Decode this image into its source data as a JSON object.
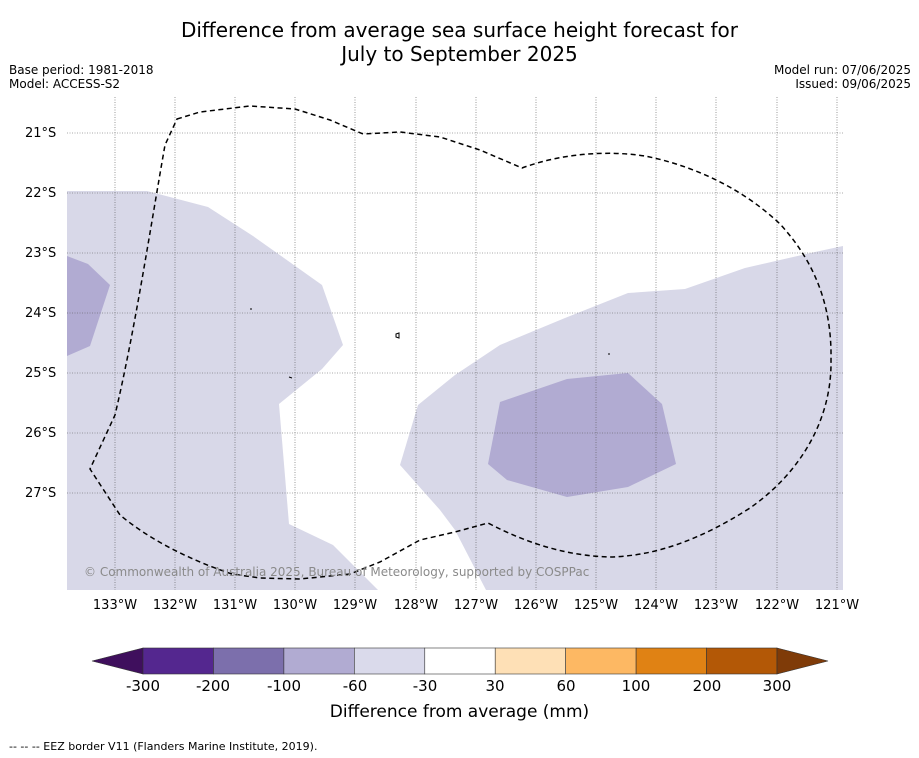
{
  "title_line1": "Difference from average sea surface height forecast for",
  "title_line2": "July to September 2025",
  "base_period": "Base period: 1981-2018",
  "model": "Model: ACCESS-S2",
  "model_run": "Model run: 07/06/2025",
  "issued": "Issued: 09/06/2025",
  "copyright": "© Commonwealth of Australia 2025, Bureau of Meteorology, supported by COSPPac",
  "lat_labels": [
    "21°S",
    "22°S",
    "23°S",
    "24°S",
    "25°S",
    "26°S",
    "27°S"
  ],
  "lon_labels": [
    "133°W",
    "132°W",
    "131°W",
    "130°W",
    "129°W",
    "128°W",
    "127°W",
    "126°W",
    "125°W",
    "124°W",
    "123°W",
    "122°W",
    "121°W"
  ],
  "colorbar": {
    "title": "Difference from average (mm)",
    "ticks": [
      "-300",
      "-200",
      "-100",
      "-60",
      "-30",
      "30",
      "60",
      "100",
      "200",
      "300"
    ],
    "colors": [
      "#3f0f5d",
      "#54278f",
      "#7c6fac",
      "#b1abd2",
      "#dadaeb",
      "#ffffff",
      "#fee0b6",
      "#fdb863",
      "#e08214",
      "#b35806",
      "#7f3b08"
    ]
  },
  "footer": "--  --  -- EEZ border V11 (Flanders Marine Institute, 2019)."
}
